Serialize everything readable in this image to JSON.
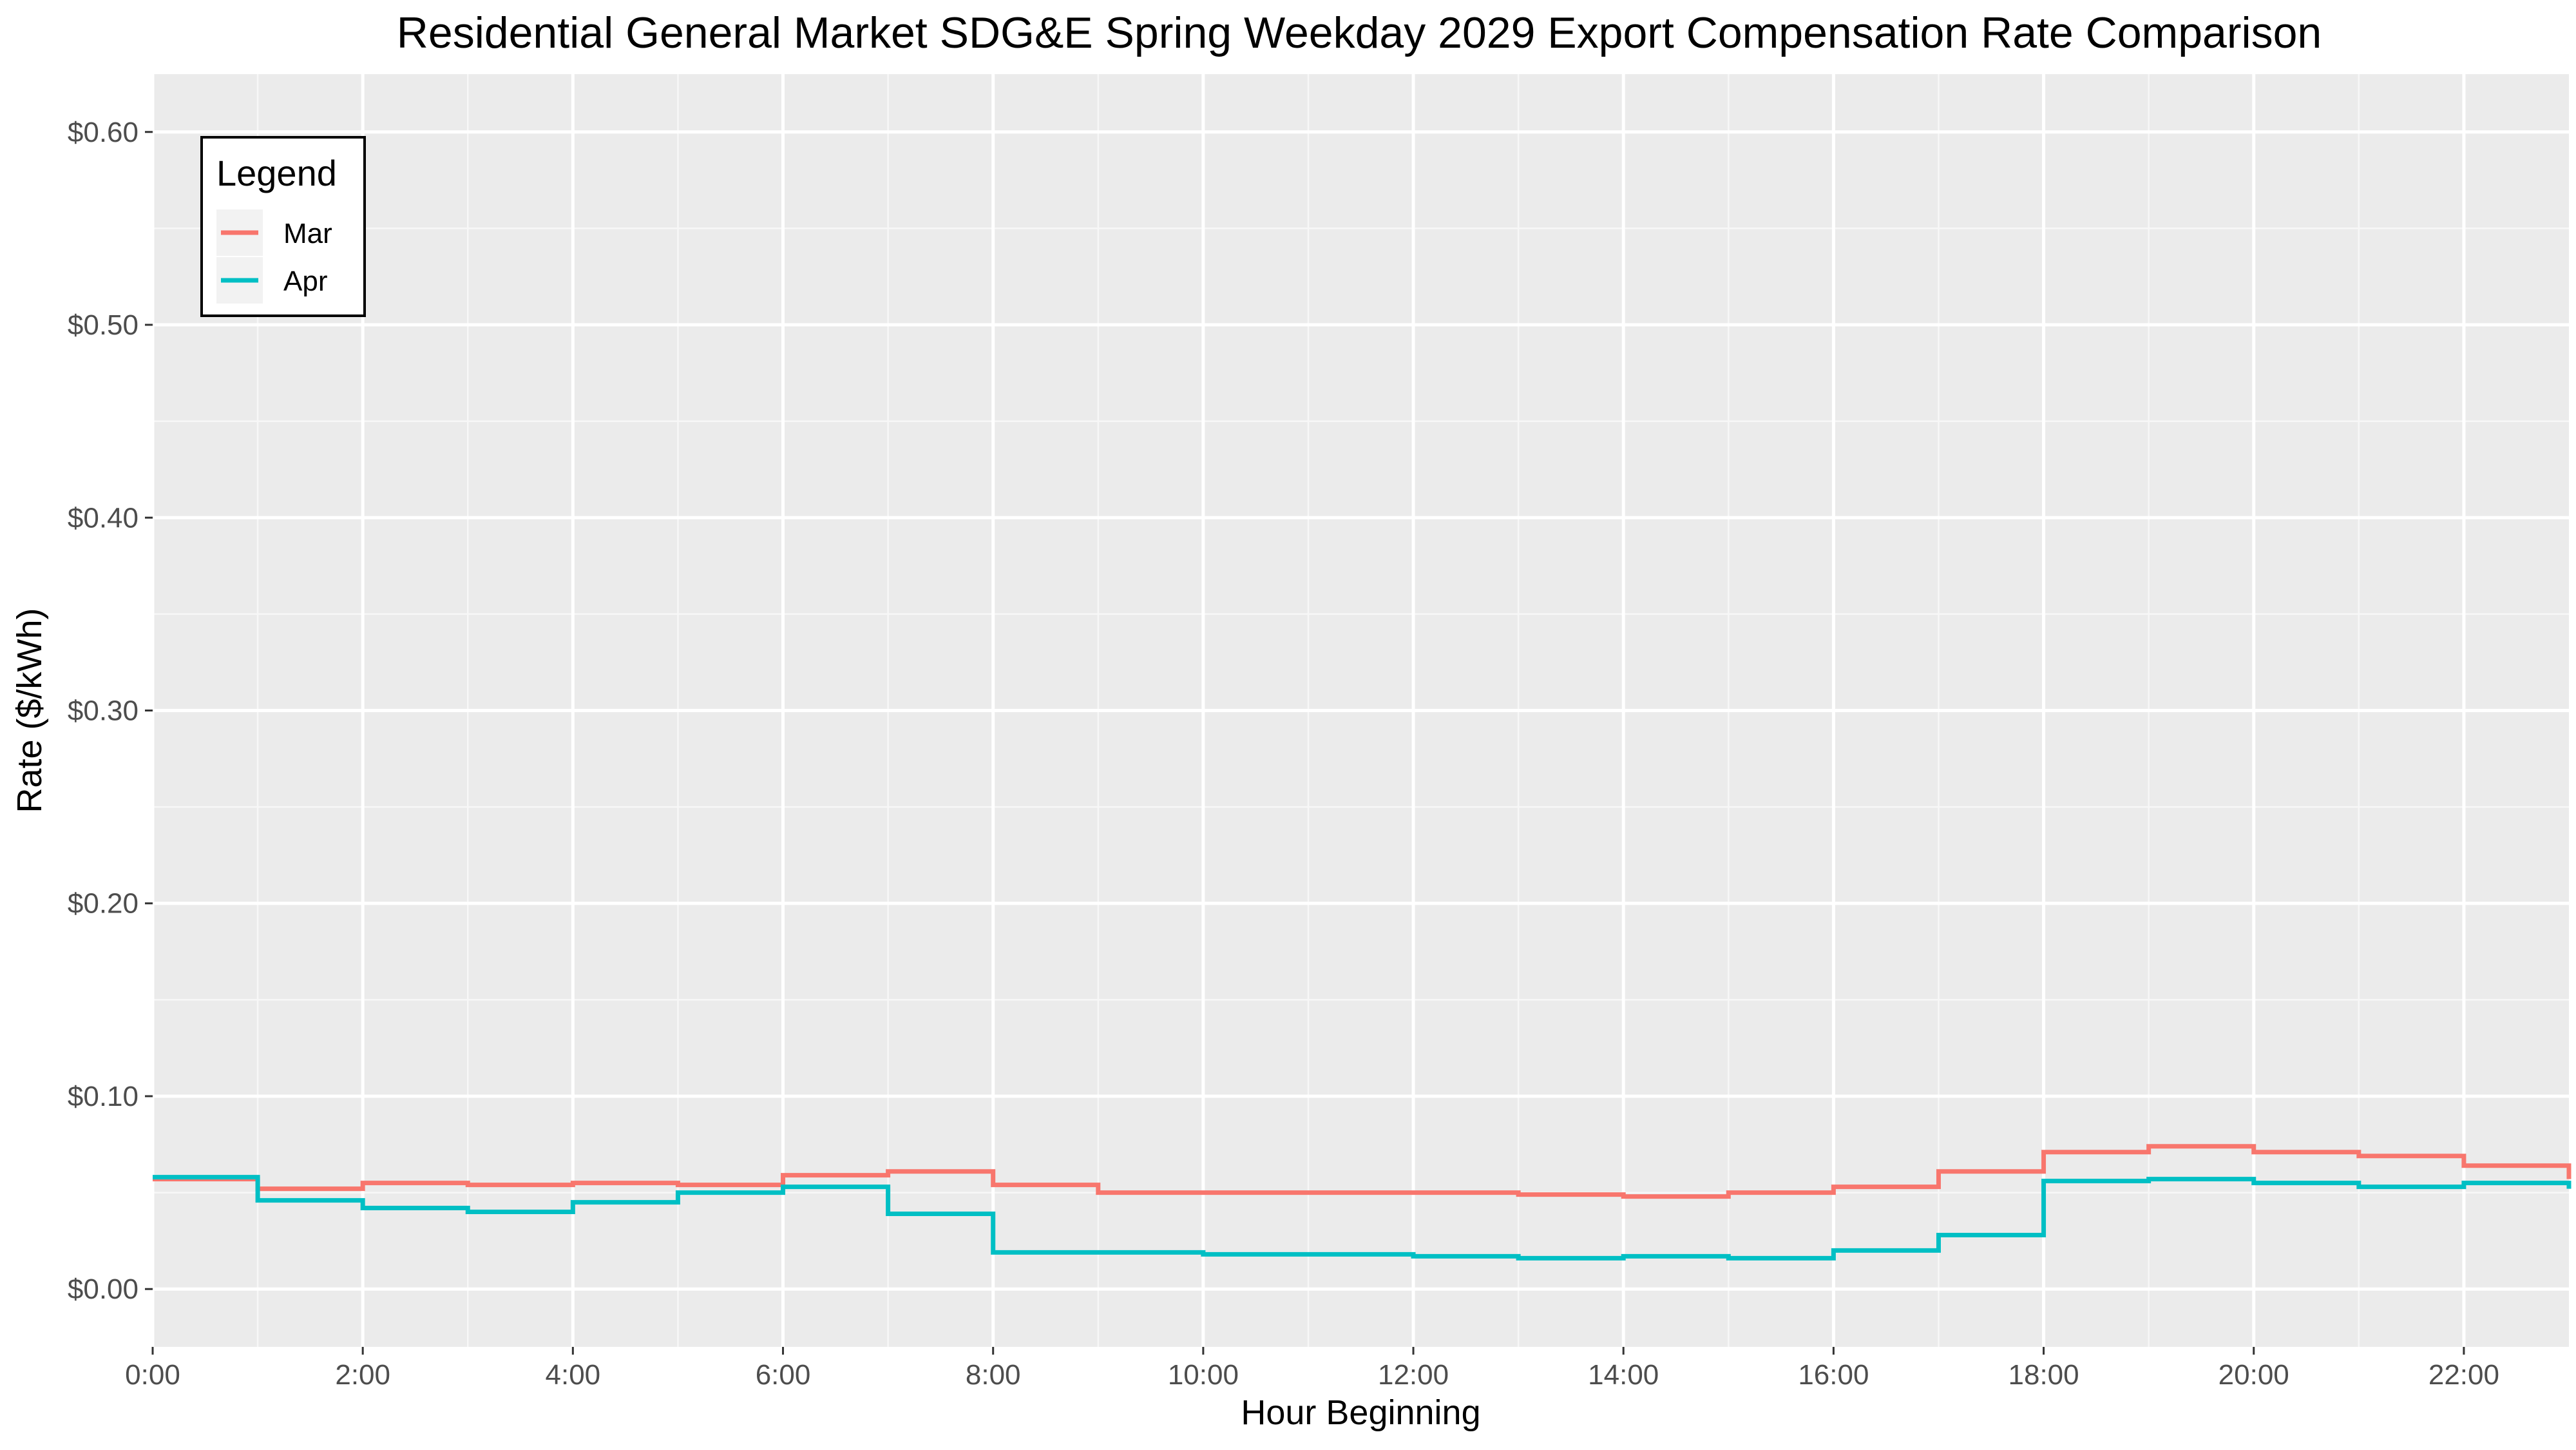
{
  "chart_data": {
    "type": "line",
    "step": "post",
    "title": "Residential General Market SDG&E Spring Weekday 2029 Export Compensation Rate Comparison",
    "xlabel": "Hour Beginning",
    "ylabel": "Rate ($/kWh)",
    "xlim": [
      0,
      23
    ],
    "ylim": [
      -0.03,
      0.63
    ],
    "x_ticks": [
      0,
      2,
      4,
      6,
      8,
      10,
      12,
      14,
      16,
      18,
      20,
      22
    ],
    "x_tick_labels": [
      "0:00",
      "2:00",
      "4:00",
      "6:00",
      "8:00",
      "10:00",
      "12:00",
      "14:00",
      "16:00",
      "18:00",
      "20:00",
      "22:00"
    ],
    "y_ticks": [
      0,
      0.1,
      0.2,
      0.3,
      0.4,
      0.5,
      0.6
    ],
    "y_tick_labels": [
      "$0.00",
      "$0.10",
      "$0.20",
      "$0.30",
      "$0.40",
      "$0.50",
      "$0.60"
    ],
    "grid": true,
    "legend": {
      "title": "Legend",
      "position": "top-left"
    },
    "x": [
      0,
      1,
      2,
      3,
      4,
      5,
      6,
      7,
      8,
      9,
      10,
      11,
      12,
      13,
      14,
      15,
      16,
      17,
      18,
      19,
      20,
      21,
      22,
      23
    ],
    "series": [
      {
        "name": "Mar",
        "color": "#F8766D",
        "values": [
          0.057,
          0.052,
          0.055,
          0.054,
          0.055,
          0.054,
          0.059,
          0.061,
          0.054,
          0.05,
          0.05,
          0.05,
          0.05,
          0.049,
          0.048,
          0.05,
          0.053,
          0.061,
          0.071,
          0.074,
          0.071,
          0.069,
          0.064,
          0.057
        ]
      },
      {
        "name": "Apr",
        "color": "#00BFC4",
        "values": [
          0.058,
          0.046,
          0.042,
          0.04,
          0.045,
          0.05,
          0.053,
          0.039,
          0.019,
          0.019,
          0.018,
          0.018,
          0.017,
          0.016,
          0.017,
          0.016,
          0.02,
          0.028,
          0.056,
          0.057,
          0.055,
          0.053,
          0.055,
          0.052
        ]
      }
    ]
  }
}
